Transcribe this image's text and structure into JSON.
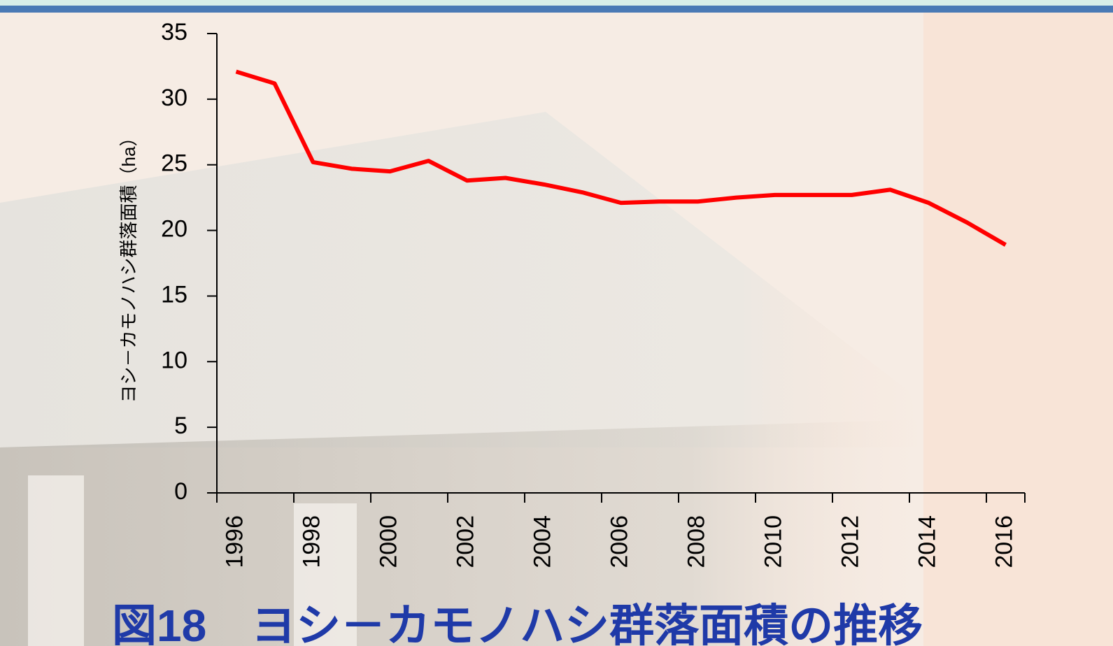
{
  "chart_data": {
    "type": "line",
    "title": "図18　ヨシ－カモノハシ群落面積の推移",
    "y_label": "ヨシ－カモノハシ群落面積（ha）",
    "categories": [
      "1996",
      null,
      "1998",
      null,
      "2000",
      null,
      "2002",
      null,
      "2004",
      null,
      "2006",
      null,
      "2008",
      null,
      "2010",
      null,
      "2012",
      null,
      "2014",
      null,
      "2016"
    ],
    "series": [
      {
        "color": "#ff0000",
        "values": [
          32.1,
          31.2,
          25.2,
          24.7,
          24.5,
          25.3,
          23.8,
          24.0,
          23.5,
          22.9,
          22.1,
          22.2,
          22.2,
          22.5,
          22.7,
          22.7,
          22.7,
          23.1,
          22.1,
          20.6,
          18.9
        ]
      }
    ],
    "ylim": [
      0,
      35
    ],
    "yticks": [
      0,
      5,
      10,
      15,
      20,
      25,
      30,
      35
    ]
  }
}
